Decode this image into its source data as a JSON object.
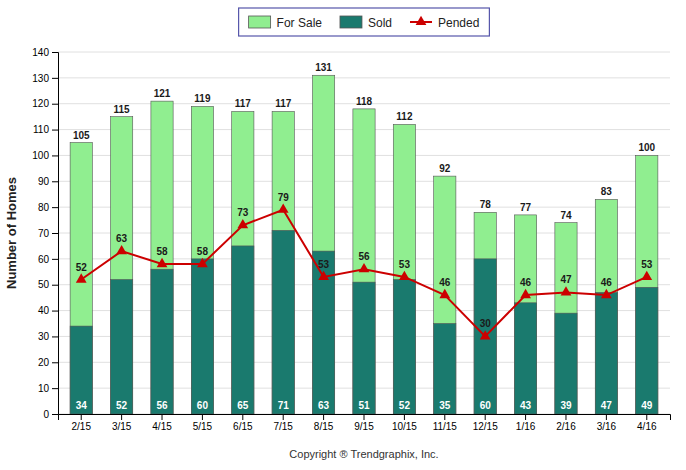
{
  "chart_data": {
    "type": "bar",
    "categories": [
      "2/15",
      "3/15",
      "4/15",
      "5/15",
      "6/15",
      "7/15",
      "8/15",
      "9/15",
      "10/15",
      "11/15",
      "12/15",
      "1/16",
      "2/16",
      "3/16",
      "4/16"
    ],
    "series": [
      {
        "name": "For Sale",
        "type": "bar",
        "color": "#90ee90",
        "values": [
          105,
          115,
          121,
          119,
          117,
          117,
          131,
          118,
          112,
          92,
          78,
          77,
          74,
          83,
          100
        ]
      },
      {
        "name": "Sold",
        "type": "bar",
        "color": "#1a7a6e",
        "values": [
          34,
          52,
          56,
          60,
          65,
          71,
          63,
          51,
          52,
          35,
          60,
          43,
          39,
          47,
          49
        ]
      },
      {
        "name": "Pended",
        "type": "line",
        "color": "#cc0000",
        "marker": "triangle",
        "values": [
          52,
          63,
          58,
          58,
          73,
          79,
          53,
          56,
          53,
          46,
          30,
          46,
          47,
          46,
          53
        ]
      }
    ],
    "xlabel": "Copyright ® Trendgraphix, Inc.",
    "ylabel": "Number of Homes",
    "ylim": [
      0,
      140
    ],
    "yticks": [
      0,
      10,
      20,
      30,
      40,
      50,
      60,
      70,
      80,
      90,
      100,
      110,
      120,
      130,
      140
    ],
    "grid": true,
    "legend": "top",
    "data_labels": true
  }
}
